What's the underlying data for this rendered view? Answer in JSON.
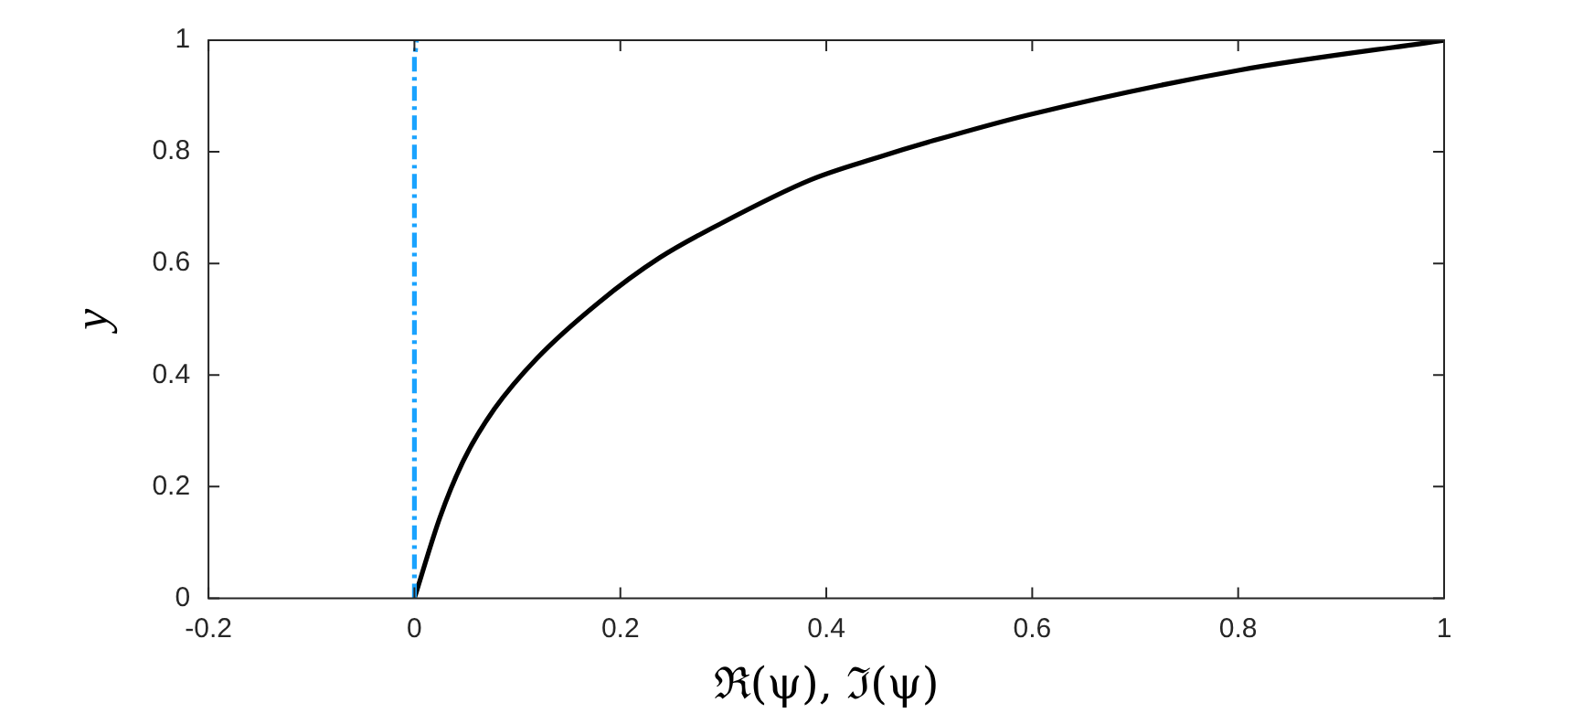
{
  "chart_data": {
    "type": "line",
    "xlabel": "ℜ(ψ), ℑ(ψ)",
    "ylabel": "y",
    "xlim": [
      -0.2,
      1
    ],
    "xticks": [
      -0.2,
      0,
      0.2,
      0.4,
      0.6,
      0.8,
      1
    ],
    "ylim": [
      0,
      1
    ],
    "yticks": [
      0,
      0.2,
      0.4,
      0.6,
      0.8,
      1
    ],
    "grid": false,
    "legend": false,
    "marker": "none",
    "series": [
      {
        "color": "#1aa3ff",
        "line_style": "dashed",
        "x": [
          0,
          0,
          0,
          0.002
        ],
        "values": [
          0,
          0.5,
          0.97,
          1
        ]
      },
      {
        "color": "#000000",
        "line_style": "solid",
        "x": [
          0,
          0.025,
          0.048,
          0.078,
          0.119,
          0.179,
          0.238,
          0.296,
          0.385,
          0.45,
          0.504,
          0.598,
          0.8,
          1
        ],
        "values": [
          0,
          0.146,
          0.248,
          0.34,
          0.43,
          0.53,
          0.61,
          0.67,
          0.75,
          0.79,
          0.82,
          0.867,
          0.946,
          1
        ]
      }
    ]
  }
}
